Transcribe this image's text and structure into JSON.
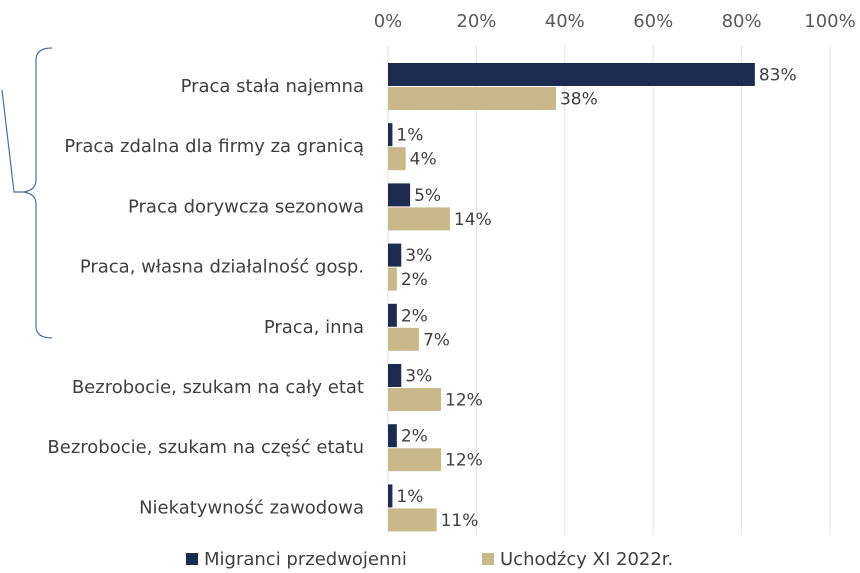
{
  "chart_data": {
    "type": "bar",
    "orientation": "horizontal",
    "categories": [
      "Praca stała najemna",
      "Praca zdalna dla firmy za granicą",
      "Praca dorywcza sezonowa",
      "Praca, własna działalność gosp.",
      "Praca, inna",
      "Bezrobocie, szukam na cały etat",
      "Bezrobocie, szukam na część etatu",
      "Niekatywność zawodowa"
    ],
    "series": [
      {
        "name": "Migranci przedwojenni",
        "color": "#1c2b4f",
        "values": [
          83,
          1,
          5,
          3,
          2,
          3,
          2,
          1
        ],
        "value_labels": [
          "83%",
          "1%",
          "5%",
          "3%",
          "2%",
          "3%",
          "2%",
          "1%"
        ]
      },
      {
        "name": "Uchodźcy XI 2022r.",
        "color": "#c8b88a",
        "values": [
          38,
          4,
          14,
          2,
          7,
          12,
          12,
          11
        ],
        "value_labels": [
          "38%",
          "4%",
          "14%",
          "2%",
          "7%",
          "12%",
          "12%",
          "11%"
        ]
      }
    ],
    "xlim": [
      0,
      100
    ],
    "xticks": [
      {
        "value": 0,
        "label": "0%"
      },
      {
        "value": 20,
        "label": "20%"
      },
      {
        "value": 40,
        "label": "40%"
      },
      {
        "value": 60,
        "label": "60%"
      },
      {
        "value": 80,
        "label": "80%"
      },
      {
        "value": 100,
        "label": "100%"
      }
    ],
    "grid": true,
    "legend": "bottom"
  }
}
